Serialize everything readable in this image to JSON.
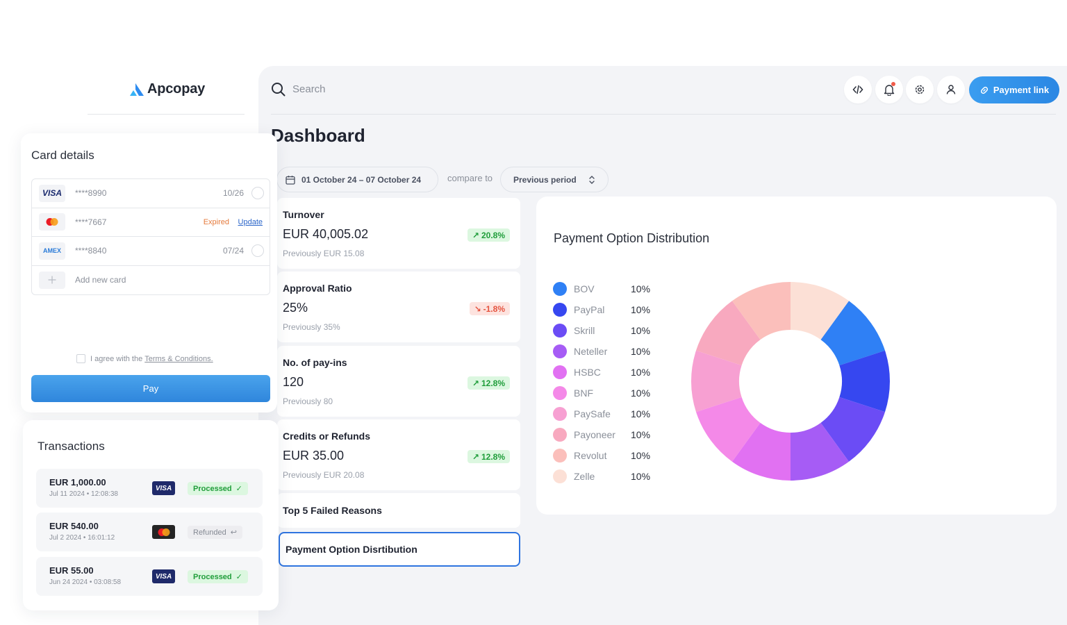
{
  "brand": {
    "name": "Apcopay"
  },
  "header": {
    "search_placeholder": "Search",
    "payment_link_label": "Payment link",
    "icons": [
      "code-icon",
      "bell-icon",
      "settings-icon",
      "user-icon"
    ]
  },
  "dashboard": {
    "title": "Dashboard",
    "date_range": "01 October 24 – 07 October 24",
    "compare_label": "compare to",
    "compare_value": "Previous period"
  },
  "kpis": [
    {
      "title": "Turnover",
      "value": "EUR 40,005.02",
      "change": "20.8%",
      "direction": "up",
      "previous": "Previously EUR 15.08"
    },
    {
      "title": "Approval Ratio",
      "value": "25%",
      "change": "-1.8%",
      "direction": "down",
      "previous": "Previously 35%"
    },
    {
      "title": "No. of pay-ins",
      "value": "120",
      "change": "12.8%",
      "direction": "up",
      "previous": "Previously 80"
    },
    {
      "title": "Credits or Refunds",
      "value": "EUR 35.00",
      "change": "12.8%",
      "direction": "up",
      "previous": "Previously EUR 20.08"
    }
  ],
  "sections": {
    "failed_reasons": "Top 5 Failed Reasons",
    "payment_distribution": "Payment Option Disrtibution"
  },
  "distribution": {
    "title": "Payment Option Distribution",
    "items": [
      {
        "name": "BOV",
        "pct": "10%",
        "color": "#2f80f5"
      },
      {
        "name": "PayPal",
        "pct": "10%",
        "color": "#3647f0"
      },
      {
        "name": "Skrill",
        "pct": "10%",
        "color": "#6b4cf5"
      },
      {
        "name": "Neteller",
        "pct": "10%",
        "color": "#a65cf5"
      },
      {
        "name": "HSBC",
        "pct": "10%",
        "color": "#e171f2"
      },
      {
        "name": "BNF",
        "pct": "10%",
        "color": "#f489e8"
      },
      {
        "name": "PaySafe",
        "pct": "10%",
        "color": "#f7a0d2"
      },
      {
        "name": "Payoneer",
        "pct": "10%",
        "color": "#f8a9bf"
      },
      {
        "name": "Revolut",
        "pct": "10%",
        "color": "#fbbfbb"
      },
      {
        "name": "Zelle",
        "pct": "10%",
        "color": "#fce0d6"
      }
    ]
  },
  "chart_data": {
    "type": "pie",
    "title": "Payment Option Distribution",
    "categories": [
      "BOV",
      "PayPal",
      "Skrill",
      "Neteller",
      "HSBC",
      "BNF",
      "PaySafe",
      "Payoneer",
      "Revolut",
      "Zelle"
    ],
    "values": [
      10,
      10,
      10,
      10,
      10,
      10,
      10,
      10,
      10,
      10
    ],
    "colors": [
      "#2f80f5",
      "#3647f0",
      "#6b4cf5",
      "#a65cf5",
      "#e171f2",
      "#f489e8",
      "#f7a0d2",
      "#f8a9bf",
      "#fbbfbb",
      "#fce0d6"
    ],
    "legend": "left"
  },
  "card_details": {
    "title": "Card details",
    "cards": [
      {
        "brand": "VISA",
        "number": "****8990",
        "expiry": "10/26"
      },
      {
        "brand": "mastercard",
        "number": "****7667",
        "status": "Expired",
        "action": "Update"
      },
      {
        "brand": "AMEX",
        "number": "****8840",
        "expiry": "07/24"
      }
    ],
    "add_card": "Add new card",
    "terms_prefix": "I agree with the",
    "terms_link": "Terms & Conditions.",
    "pay_label": "Pay"
  },
  "transactions": {
    "title": "Transactions",
    "items": [
      {
        "amount": "EUR 1,000.00",
        "date": "Jul 11 2024 • 12:08:38",
        "brand": "VISA",
        "status": "Processed"
      },
      {
        "amount": "EUR 540.00",
        "date": "Jul 2 2024 • 16:01:12",
        "brand": "mastercard",
        "status": "Refunded"
      },
      {
        "amount": "EUR 55.00",
        "date": "Jun 24 2024 • 03:08:58",
        "brand": "VISA",
        "status": "Processed"
      }
    ]
  }
}
